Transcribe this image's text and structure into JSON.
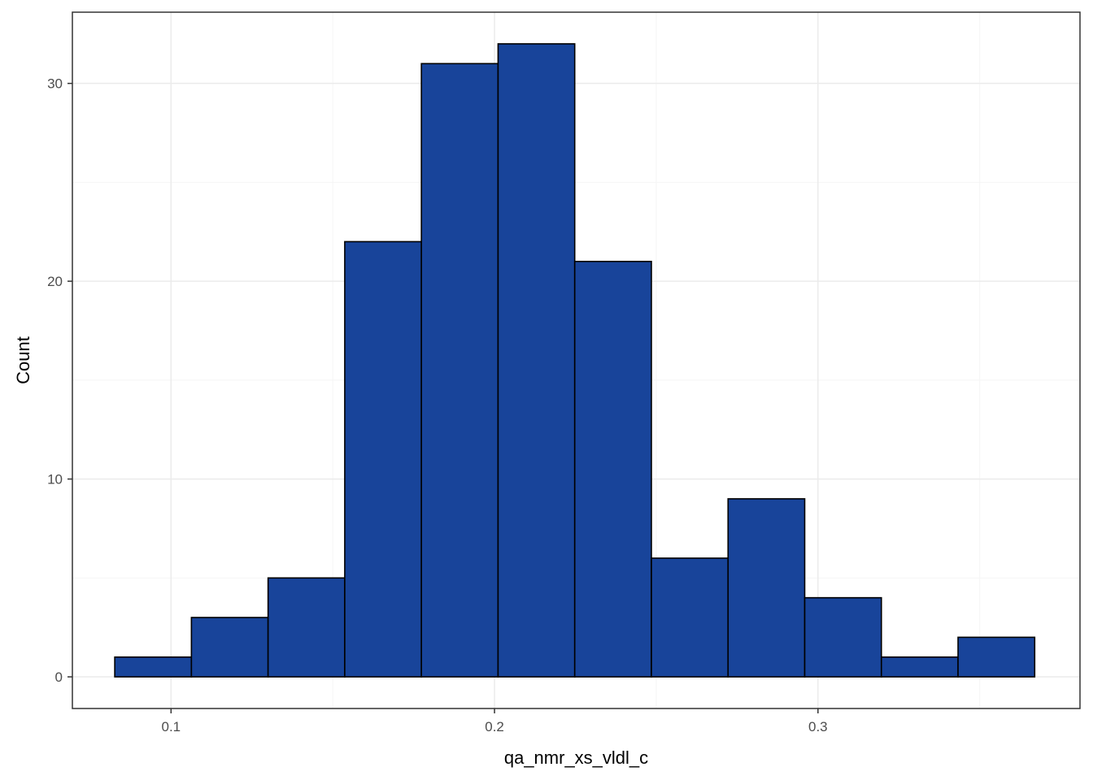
{
  "chart_data": {
    "type": "bar",
    "subtype": "histogram",
    "xlabel": "qa_nmr_xs_vldl_c",
    "ylabel": "Count",
    "xlim": [
      0.0695,
      0.381
    ],
    "ylim": [
      -1.6,
      33.6
    ],
    "x_ticks": [
      0.1,
      0.2,
      0.3
    ],
    "x_tick_labels": [
      "0.1",
      "0.2",
      "0.3"
    ],
    "x_minor_ticks": [
      0.15,
      0.25,
      0.35
    ],
    "y_ticks": [
      0,
      10,
      20,
      30
    ],
    "y_tick_labels": [
      "0",
      "10",
      "20",
      "30"
    ],
    "y_minor_ticks": [
      5,
      15,
      25
    ],
    "bins": [
      {
        "x0": 0.0826,
        "x1": 0.1063,
        "count": 1
      },
      {
        "x0": 0.1063,
        "x1": 0.13,
        "count": 3
      },
      {
        "x0": 0.13,
        "x1": 0.1537,
        "count": 5
      },
      {
        "x0": 0.1537,
        "x1": 0.1774,
        "count": 22
      },
      {
        "x0": 0.1774,
        "x1": 0.2011,
        "count": 31
      },
      {
        "x0": 0.2011,
        "x1": 0.2248,
        "count": 32
      },
      {
        "x0": 0.2248,
        "x1": 0.2485,
        "count": 21
      },
      {
        "x0": 0.2485,
        "x1": 0.2722,
        "count": 6
      },
      {
        "x0": 0.2722,
        "x1": 0.2959,
        "count": 9
      },
      {
        "x0": 0.2959,
        "x1": 0.3196,
        "count": 4
      },
      {
        "x0": 0.3196,
        "x1": 0.3433,
        "count": 1
      },
      {
        "x0": 0.3433,
        "x1": 0.367,
        "count": 2
      }
    ],
    "grid": true,
    "legend": "none",
    "colors": {
      "bar_fill": "#18449A",
      "bar_stroke": "#000000",
      "grid_major": "#EBEBEB",
      "grid_minor": "#F5F5F5",
      "panel_border": "#333333",
      "tick_text": "#4D4D4D"
    }
  }
}
